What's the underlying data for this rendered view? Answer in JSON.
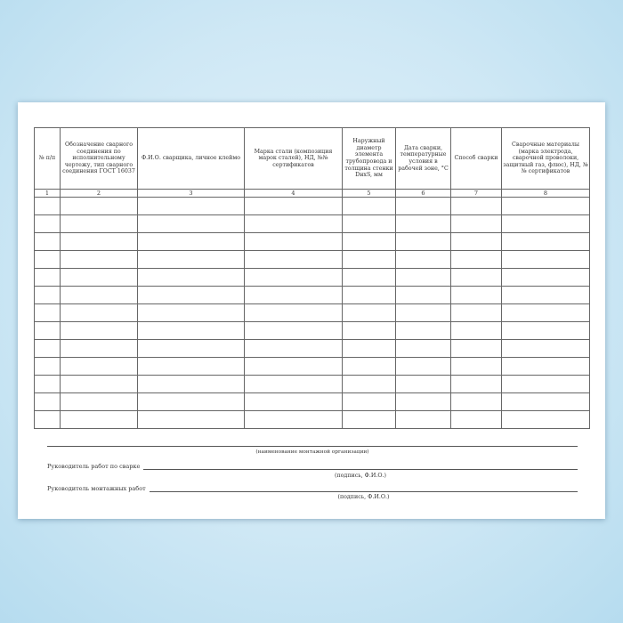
{
  "table": {
    "headers": [
      "№ п/п",
      "Обозначение сварного соединения по исполнительному чертежу, тип сварного соединения ГОСТ 16037",
      "Ф.И.О. сварщика, личное клеймо",
      "Марка стали (композиция марок сталей), НД, №№ сертификатов",
      "Наружный диаметр элемента трубопровода и толщина стенки DнxS, мм",
      "Дата сварки, температурные условия в рабочей зоне, °C",
      "Способ сварки",
      "Сварочные материалы (марка электрода, сварочной проволоки, защитный газ, флюс), НД, №№ сертификатов"
    ],
    "column_numbers": [
      "1",
      "2",
      "3",
      "4",
      "5",
      "6",
      "7",
      "8"
    ],
    "empty_rows": 13
  },
  "footer": {
    "org_caption": "(наименование монтажной организации)",
    "welding_lead_label": "Руководитель работ по сварке",
    "welding_lead_caption": "(подпись, Ф.И.О.)",
    "install_lead_label": "Руководитель монтажных работ",
    "install_lead_caption": "(подпись, Ф.И.О.)"
  }
}
